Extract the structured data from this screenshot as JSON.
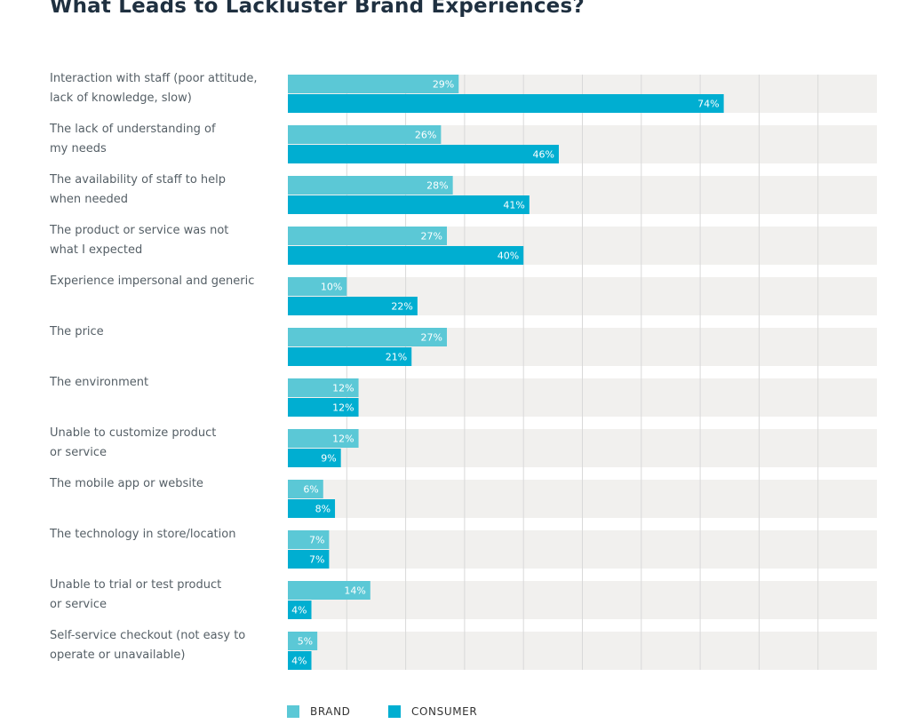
{
  "chart_data": {
    "type": "bar",
    "orientation": "horizontal",
    "title": "What Leads to Lackluster Brand Experiences?",
    "categories": [
      "Interaction with staff (poor attitude,\nlack of knowledge, slow)",
      "The lack of understanding of\nmy needs",
      "The availability of staff to help\nwhen needed",
      "The product or service was not\nwhat I expected",
      "Experience impersonal and generic",
      "The price",
      "The environment",
      "Unable to customize product\nor service",
      "The mobile app or website",
      "The technology in store/location",
      "Unable to trial or test product\nor service",
      "Self-service checkout (not easy to\noperate or unavailable)"
    ],
    "series": [
      {
        "name": "BRAND",
        "color": "#5bc8d6",
        "values": [
          29,
          26,
          28,
          27,
          10,
          27,
          12,
          12,
          6,
          7,
          14,
          5
        ],
        "labels": [
          "29%",
          "26%",
          "28%",
          "27%",
          "10%",
          "27%",
          "12%",
          "12%",
          "6%",
          "7%",
          "14%",
          "5%"
        ]
      },
      {
        "name": "CONSUMER",
        "color": "#00aed1",
        "values": [
          74,
          46,
          41,
          40,
          22,
          21,
          12,
          9,
          8,
          7,
          4,
          4
        ],
        "labels": [
          "74%",
          "46%",
          "41%",
          "40%",
          "22%",
          "21%",
          "12%",
          "9%",
          "8%",
          "7%",
          "4%",
          "4%"
        ]
      }
    ],
    "xlim": [
      0,
      100
    ],
    "grid": true,
    "legend_position": "bottom"
  }
}
